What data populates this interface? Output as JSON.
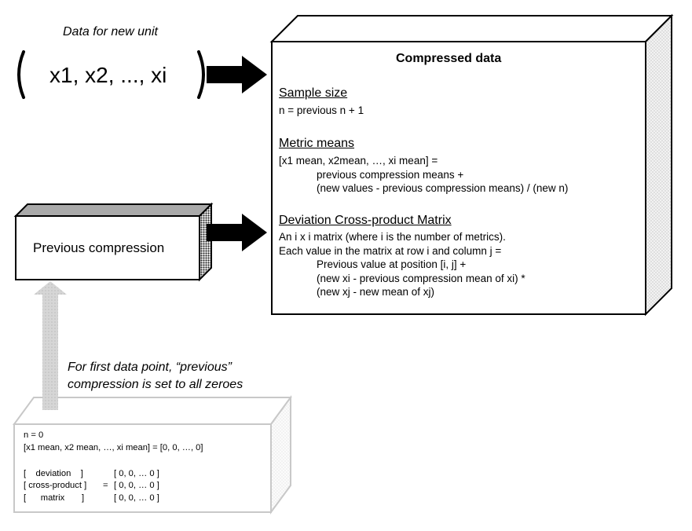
{
  "new_unit": {
    "caption": "Data for new unit",
    "values": "x1, x2, ..., xi"
  },
  "previous_compression": {
    "label": "Previous compression"
  },
  "first_point_note": {
    "line1": "For first data point, “previous”",
    "line2": "compression is set to all zeroes"
  },
  "compressed": {
    "title": "Compressed data",
    "sample_size": {
      "heading": "Sample size",
      "formula": "n = previous n + 1"
    },
    "metric_means": {
      "heading": "Metric means",
      "line1": "[x1 mean, x2mean, …, xi mean] =",
      "line2": "previous compression means +",
      "line3": "(new values - previous compression means) / (new n)"
    },
    "matrix": {
      "heading": "Deviation Cross-product Matrix",
      "line1": "An i x i matrix (where i is the number of metrics).",
      "line2": "Each value in the matrix at row i and column j =",
      "line3": "Previous value at position [i, j] +",
      "line4": "(new xi - previous compression mean of xi) *",
      "line5": "(new xj - new mean of xj)"
    }
  },
  "zero_state": {
    "n_line": "n = 0",
    "means_line": "[x1 mean, x2 mean, …, xi mean] = [0, 0, …, 0]",
    "row1_label": "[    deviation    ]",
    "row1_value": "[ 0, 0, … 0 ]",
    "row2_label": "[ cross-product ]",
    "row2_eq": "=",
    "row2_value": "[ 0, 0, … 0 ]",
    "row3_label": "[      matrix       ]",
    "row3_value": "[ 0, 0, … 0 ]"
  },
  "colors": {
    "outline": "#000000",
    "gray_top": "#aaaaaa",
    "light_arrow": "#d0d0d0",
    "light_outline": "#c8c8c8"
  }
}
